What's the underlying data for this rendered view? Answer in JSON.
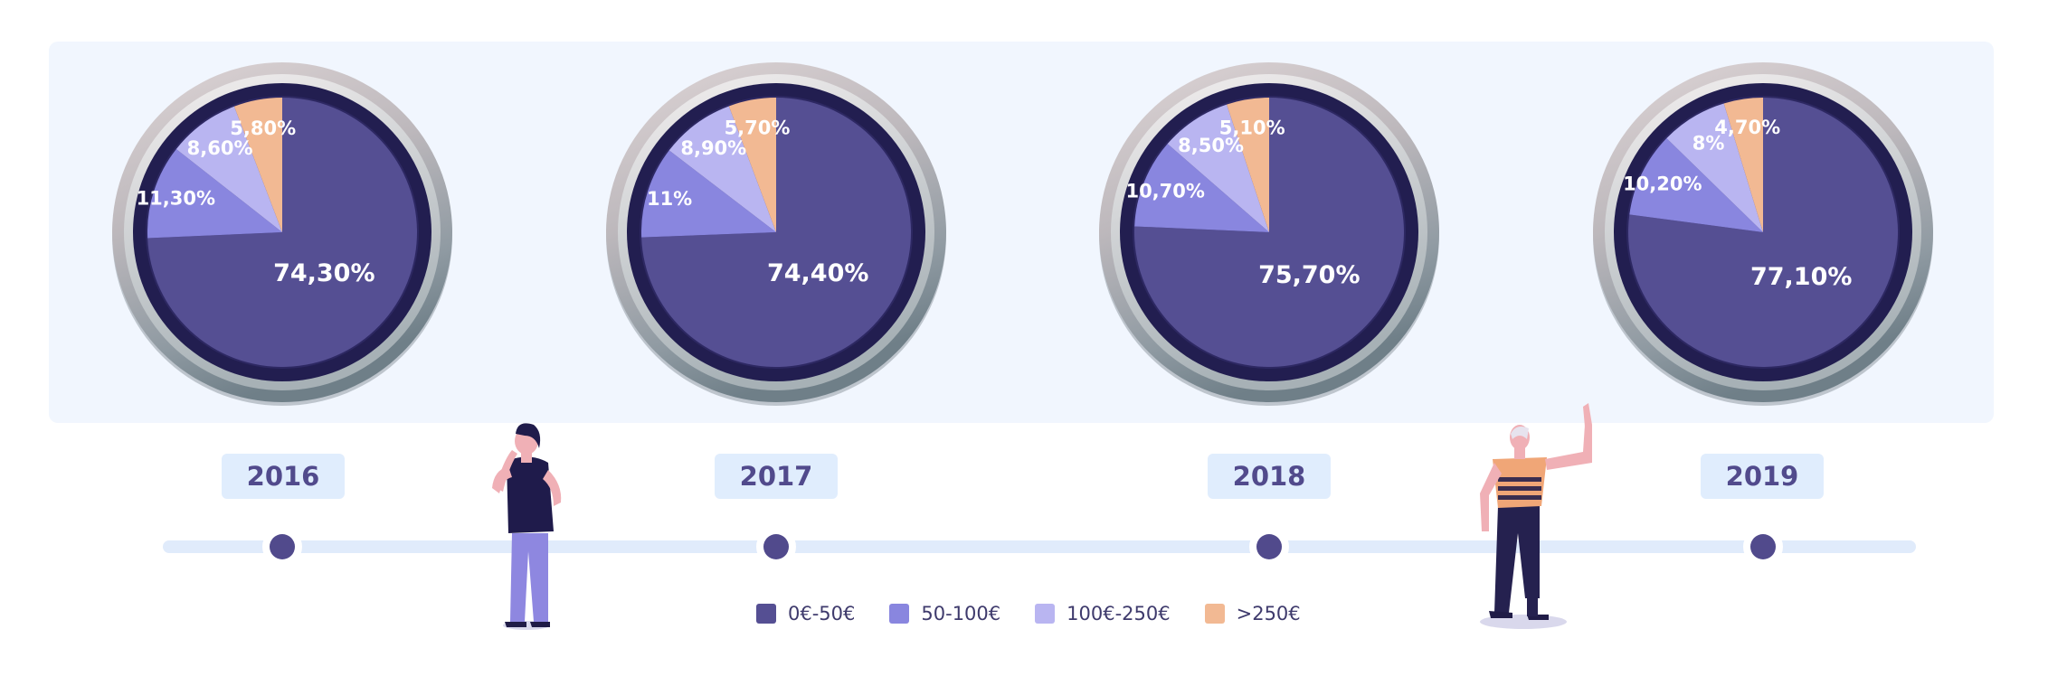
{
  "colors": {
    "panel_bg": "#f1f6fe",
    "badge_bg": "#e0edfd",
    "badge_text": "#514a8c",
    "timeline": "#e0ebfb",
    "node": "#514a8c",
    "slice_colors": [
      "#554f93",
      "#8986df",
      "#b9b5f1",
      "#f2b993"
    ]
  },
  "legend": [
    {
      "label": "0€-50€",
      "color": "#554f93"
    },
    {
      "label": "50-100€",
      "color": "#8986df"
    },
    {
      "label": "100€-250€",
      "color": "#b9b5f1"
    },
    {
      "label": ">250€",
      "color": "#f2b993"
    }
  ],
  "chart_data": [
    {
      "type": "pie",
      "year": "2016",
      "categories": [
        "0€-50€",
        "50-100€",
        "100€-250€",
        ">250€"
      ],
      "values": [
        74.3,
        11.3,
        8.6,
        5.8
      ],
      "labels": [
        "74,30%",
        "11,30%",
        "8,60%",
        "5,80%"
      ]
    },
    {
      "type": "pie",
      "year": "2017",
      "categories": [
        "0€-50€",
        "50-100€",
        "100€-250€",
        ">250€"
      ],
      "values": [
        74.4,
        11,
        8.9,
        5.7
      ],
      "labels": [
        "74,40%",
        "11%",
        "8,90%",
        "5,70%"
      ]
    },
    {
      "type": "pie",
      "year": "2018",
      "categories": [
        "0€-50€",
        "50-100€",
        "100€-250€",
        ">250€"
      ],
      "values": [
        75.7,
        10.7,
        8.5,
        5.1
      ],
      "labels": [
        "75,70%",
        "10,70%",
        "8,50%",
        "5,10%"
      ]
    },
    {
      "type": "pie",
      "year": "2019",
      "categories": [
        "0€-50€",
        "50-100€",
        "100€-250€",
        ">250€"
      ],
      "values": [
        77.1,
        10.2,
        8,
        4.7
      ],
      "labels": [
        "77,10%",
        "10,20%",
        "8%",
        "4,70%"
      ]
    }
  ]
}
